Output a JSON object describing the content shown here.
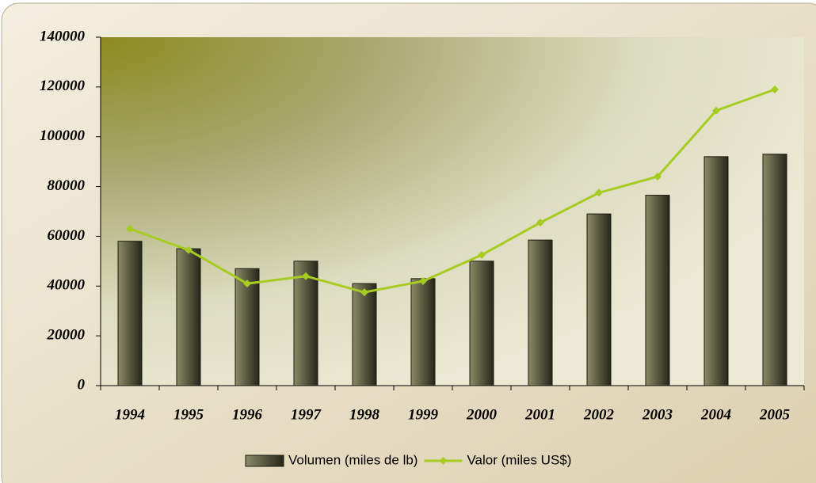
{
  "chart_data": {
    "type": "bar",
    "categories": [
      "1994",
      "1995",
      "1996",
      "1997",
      "1998",
      "1999",
      "2000",
      "2001",
      "2002",
      "2003",
      "2004",
      "2005"
    ],
    "series": [
      {
        "name": "Volumen (miles de lb)",
        "type": "bar",
        "color": "#4a4a30",
        "values": [
          58000,
          55000,
          47000,
          50000,
          41000,
          43000,
          50000,
          58500,
          69000,
          76500,
          92000,
          93000
        ]
      },
      {
        "name": "Valor (miles US$)",
        "type": "line",
        "color": "#a6cc22",
        "values": [
          63000,
          54500,
          41000,
          44000,
          37500,
          42000,
          52500,
          65500,
          77500,
          84000,
          110500,
          119000
        ]
      }
    ],
    "ylim": [
      0,
      140000
    ],
    "yticks": [
      0,
      20000,
      40000,
      60000,
      80000,
      100000,
      120000,
      140000
    ],
    "legend": "bottom"
  }
}
